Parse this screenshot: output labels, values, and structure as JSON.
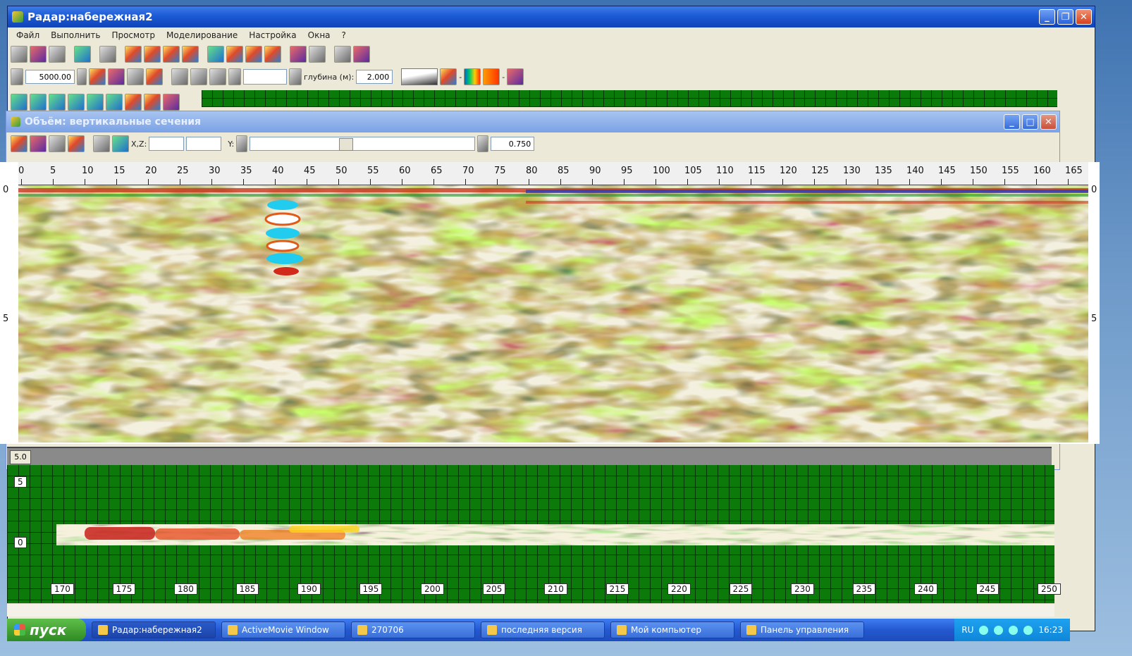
{
  "window": {
    "title": "Радар:набережная2"
  },
  "menu": [
    "Файл",
    "Выполнить",
    "Просмотр",
    "Моделирование",
    "Настройка",
    "Окна",
    "?"
  ],
  "toolbar2": {
    "value": "5000.00",
    "depth_label": "глубина (м):",
    "depth_value": "2.000"
  },
  "child": {
    "title": "Объём: вертикальные сечения",
    "xz_label": "X,Z:",
    "y_label": "Y:",
    "value": "0.750"
  },
  "ruler": {
    "ticks": [
      "0",
      "5",
      "10",
      "15",
      "20",
      "25",
      "30",
      "35",
      "40",
      "45",
      "50",
      "55",
      "60",
      "65",
      "70",
      "75",
      "80",
      "85",
      "90",
      "95",
      "100",
      "105",
      "110",
      "115",
      "120",
      "125",
      "130",
      "135",
      "140",
      "145",
      "150",
      "155",
      "160",
      "165"
    ]
  },
  "depth": {
    "left": [
      "0",
      "5"
    ],
    "right": [
      "0",
      "5"
    ]
  },
  "grey_strip": {
    "value": "5.0"
  },
  "lower": {
    "y_labels": [
      "5",
      "0"
    ],
    "x_ticks": [
      "170",
      "175",
      "180",
      "185",
      "190",
      "195",
      "200",
      "205",
      "210",
      "215",
      "220",
      "225",
      "230",
      "235",
      "240",
      "245",
      "250"
    ]
  },
  "taskbar": {
    "start": "пуск",
    "items": [
      "Радар:набережная2",
      "ActiveMovie Window",
      "270706",
      "последняя версия",
      "Мой компьютер",
      "Панель управления"
    ],
    "lang": "RU",
    "clock": "16:23"
  }
}
